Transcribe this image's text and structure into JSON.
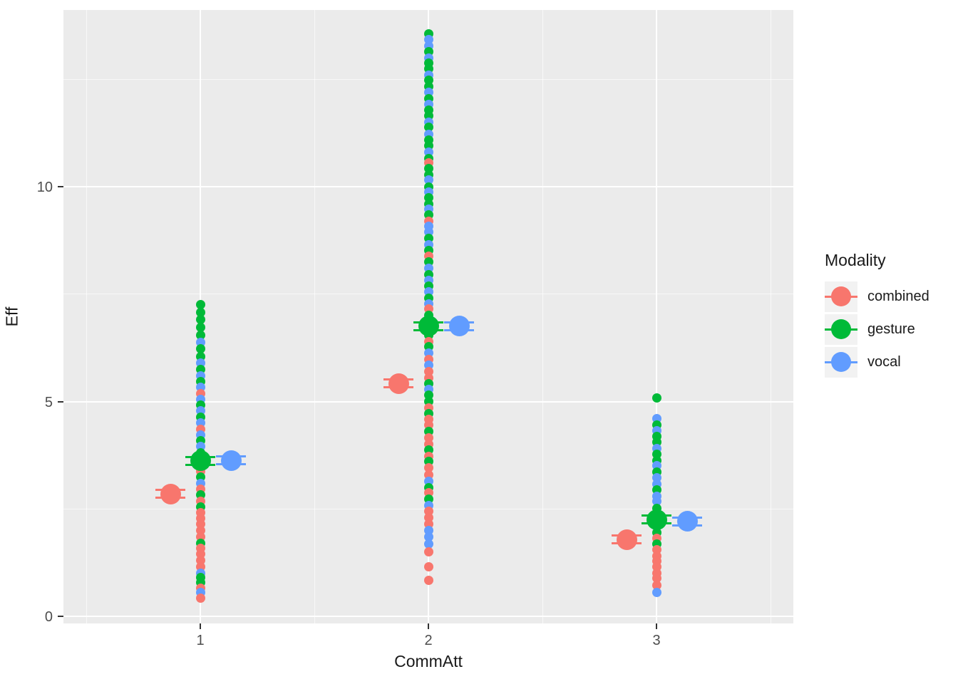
{
  "axes": {
    "x": {
      "title": "CommAtt",
      "tick_labels": [
        "1",
        "2",
        "3"
      ],
      "tick_values": [
        1,
        2,
        3
      ],
      "minor_values": [
        0.5,
        1.5,
        2.5,
        3.5
      ],
      "range": [
        0.4,
        3.6
      ]
    },
    "y": {
      "title": "Eff",
      "tick_labels": [
        "0",
        "5",
        "10"
      ],
      "tick_values": [
        0,
        5,
        10
      ],
      "minor_values": [
        2.5,
        7.5,
        12.5
      ],
      "range": [
        -0.17,
        14.12
      ]
    }
  },
  "legend": {
    "title": "Modality",
    "items": [
      {
        "label": "combined",
        "color": "#F8766D"
      },
      {
        "label": "gesture",
        "color": "#00BA38"
      },
      {
        "label": "vocal",
        "color": "#619CFF"
      }
    ],
    "key_bg": "#F2F2F2"
  },
  "panel_bg": "#EBEBEB",
  "chart_data": {
    "type": "scatter",
    "title": "",
    "xlabel": "CommAtt",
    "ylabel": "Eff",
    "x_ticks": [
      1,
      2,
      3
    ],
    "xlim": [
      0.4,
      3.6
    ],
    "ylim": [
      -0.17,
      14.12
    ],
    "grid": true,
    "legend_position": "right",
    "series_colors": {
      "combined": "#F8766D",
      "gesture": "#00BA38",
      "vocal": "#619CFF"
    },
    "modality_codes": {
      "c": "combined",
      "g": "gesture",
      "v": "vocal"
    },
    "point_format": [
      "CommAtt",
      "Eff",
      "modality_code"
    ],
    "raw_points": [
      [
        1,
        7.25,
        "g"
      ],
      [
        1,
        7.08,
        "g"
      ],
      [
        1,
        6.9,
        "g"
      ],
      [
        1,
        6.73,
        "g"
      ],
      [
        1,
        6.55,
        "g"
      ],
      [
        1,
        6.38,
        "v"
      ],
      [
        1,
        6.22,
        "g"
      ],
      [
        1,
        6.05,
        "g"
      ],
      [
        1,
        5.9,
        "v"
      ],
      [
        1,
        5.75,
        "g"
      ],
      [
        1,
        5.6,
        "v"
      ],
      [
        1,
        5.47,
        "g"
      ],
      [
        1,
        5.33,
        "v"
      ],
      [
        1,
        5.18,
        "c"
      ],
      [
        1,
        5.05,
        "v"
      ],
      [
        1,
        4.92,
        "g"
      ],
      [
        1,
        4.78,
        "v"
      ],
      [
        1,
        4.63,
        "g"
      ],
      [
        1,
        4.5,
        "v"
      ],
      [
        1,
        4.35,
        "c"
      ],
      [
        1,
        4.22,
        "v"
      ],
      [
        1,
        4.08,
        "g"
      ],
      [
        1,
        3.95,
        "v"
      ],
      [
        1,
        3.8,
        "g"
      ],
      [
        1,
        3.66,
        "v"
      ],
      [
        1,
        3.52,
        "v"
      ],
      [
        1,
        3.38,
        "c"
      ],
      [
        1,
        3.25,
        "g"
      ],
      [
        1,
        3.1,
        "v"
      ],
      [
        1,
        2.96,
        "c"
      ],
      [
        1,
        2.82,
        "g"
      ],
      [
        1,
        2.68,
        "c"
      ],
      [
        1,
        2.55,
        "g"
      ],
      [
        1,
        2.42,
        "c"
      ],
      [
        1,
        2.28,
        "c"
      ],
      [
        1,
        2.15,
        "c"
      ],
      [
        1,
        2.0,
        "c"
      ],
      [
        1,
        1.85,
        "c"
      ],
      [
        1,
        1.7,
        "g"
      ],
      [
        1,
        1.58,
        "c"
      ],
      [
        1,
        1.45,
        "c"
      ],
      [
        1,
        1.3,
        "c"
      ],
      [
        1,
        1.15,
        "c"
      ],
      [
        1,
        1.0,
        "v"
      ],
      [
        1,
        0.9,
        "g"
      ],
      [
        1,
        0.78,
        "g"
      ],
      [
        1,
        0.65,
        "c"
      ],
      [
        1,
        0.55,
        "v"
      ],
      [
        1,
        0.42,
        "c"
      ],
      [
        2,
        13.55,
        "g"
      ],
      [
        2,
        13.42,
        "v"
      ],
      [
        2,
        13.28,
        "v"
      ],
      [
        2,
        13.15,
        "g"
      ],
      [
        2,
        13.0,
        "v"
      ],
      [
        2,
        12.88,
        "g"
      ],
      [
        2,
        12.75,
        "g"
      ],
      [
        2,
        12.6,
        "v"
      ],
      [
        2,
        12.48,
        "g"
      ],
      [
        2,
        12.33,
        "g"
      ],
      [
        2,
        12.2,
        "v"
      ],
      [
        2,
        12.05,
        "g"
      ],
      [
        2,
        11.92,
        "v"
      ],
      [
        2,
        11.78,
        "g"
      ],
      [
        2,
        11.65,
        "g"
      ],
      [
        2,
        11.5,
        "v"
      ],
      [
        2,
        11.38,
        "g"
      ],
      [
        2,
        11.22,
        "v"
      ],
      [
        2,
        11.08,
        "g"
      ],
      [
        2,
        10.95,
        "g"
      ],
      [
        2,
        10.8,
        "v"
      ],
      [
        2,
        10.65,
        "g"
      ],
      [
        2,
        10.55,
        "c"
      ],
      [
        2,
        10.42,
        "g"
      ],
      [
        2,
        10.28,
        "g"
      ],
      [
        2,
        10.15,
        "v"
      ],
      [
        2,
        10.0,
        "g"
      ],
      [
        2,
        9.88,
        "v"
      ],
      [
        2,
        9.75,
        "g"
      ],
      [
        2,
        9.6,
        "g"
      ],
      [
        2,
        9.48,
        "v"
      ],
      [
        2,
        9.35,
        "g"
      ],
      [
        2,
        9.2,
        "c"
      ],
      [
        2,
        9.08,
        "v"
      ],
      [
        2,
        8.95,
        "v"
      ],
      [
        2,
        8.8,
        "g"
      ],
      [
        2,
        8.65,
        "v"
      ],
      [
        2,
        8.52,
        "g"
      ],
      [
        2,
        8.38,
        "c"
      ],
      [
        2,
        8.25,
        "g"
      ],
      [
        2,
        8.1,
        "v"
      ],
      [
        2,
        7.95,
        "g"
      ],
      [
        2,
        7.82,
        "v"
      ],
      [
        2,
        7.68,
        "g"
      ],
      [
        2,
        7.55,
        "v"
      ],
      [
        2,
        7.4,
        "g"
      ],
      [
        2,
        7.28,
        "v"
      ],
      [
        2,
        7.15,
        "c"
      ],
      [
        2,
        7.0,
        "g"
      ],
      [
        2,
        6.85,
        "g"
      ],
      [
        2,
        6.7,
        "v"
      ],
      [
        2,
        6.55,
        "g"
      ],
      [
        2,
        6.4,
        "c"
      ],
      [
        2,
        6.28,
        "g"
      ],
      [
        2,
        6.12,
        "v"
      ],
      [
        2,
        5.98,
        "c"
      ],
      [
        2,
        5.85,
        "v"
      ],
      [
        2,
        5.7,
        "c"
      ],
      [
        2,
        5.55,
        "c"
      ],
      [
        2,
        5.42,
        "g"
      ],
      [
        2,
        5.28,
        "v"
      ],
      [
        2,
        5.15,
        "g"
      ],
      [
        2,
        5.0,
        "g"
      ],
      [
        2,
        4.85,
        "c"
      ],
      [
        2,
        4.72,
        "g"
      ],
      [
        2,
        4.58,
        "c"
      ],
      [
        2,
        4.45,
        "c"
      ],
      [
        2,
        4.3,
        "g"
      ],
      [
        2,
        4.15,
        "c"
      ],
      [
        2,
        4.0,
        "c"
      ],
      [
        2,
        3.88,
        "g"
      ],
      [
        2,
        3.72,
        "c"
      ],
      [
        2,
        3.6,
        "g"
      ],
      [
        2,
        3.45,
        "c"
      ],
      [
        2,
        3.3,
        "c"
      ],
      [
        2,
        3.15,
        "v"
      ],
      [
        2,
        3.0,
        "g"
      ],
      [
        2,
        2.88,
        "c"
      ],
      [
        2,
        2.72,
        "g"
      ],
      [
        2,
        2.58,
        "v"
      ],
      [
        2,
        2.45,
        "c"
      ],
      [
        2,
        2.3,
        "c"
      ],
      [
        2,
        2.15,
        "c"
      ],
      [
        2,
        2.0,
        "v"
      ],
      [
        2,
        1.85,
        "v"
      ],
      [
        2,
        1.68,
        "v"
      ],
      [
        2,
        1.5,
        "c"
      ],
      [
        2,
        1.16,
        "c"
      ],
      [
        2,
        0.84,
        "c"
      ],
      [
        3,
        5.08,
        "g"
      ],
      [
        3,
        4.6,
        "v"
      ],
      [
        3,
        4.45,
        "g"
      ],
      [
        3,
        4.32,
        "v"
      ],
      [
        3,
        4.18,
        "g"
      ],
      [
        3,
        4.05,
        "g"
      ],
      [
        3,
        3.9,
        "v"
      ],
      [
        3,
        3.78,
        "g"
      ],
      [
        3,
        3.62,
        "g"
      ],
      [
        3,
        3.5,
        "v"
      ],
      [
        3,
        3.35,
        "g"
      ],
      [
        3,
        3.22,
        "v"
      ],
      [
        3,
        3.08,
        "v"
      ],
      [
        3,
        2.95,
        "g"
      ],
      [
        3,
        2.8,
        "v"
      ],
      [
        3,
        2.68,
        "v"
      ],
      [
        3,
        2.52,
        "g"
      ],
      [
        3,
        2.4,
        "g"
      ],
      [
        3,
        2.25,
        "g"
      ],
      [
        3,
        2.1,
        "g"
      ],
      [
        3,
        1.95,
        "g"
      ],
      [
        3,
        1.82,
        "c"
      ],
      [
        3,
        1.68,
        "g"
      ],
      [
        3,
        1.55,
        "c"
      ],
      [
        3,
        1.4,
        "c"
      ],
      [
        3,
        1.28,
        "c"
      ],
      [
        3,
        1.15,
        "c"
      ],
      [
        3,
        1.0,
        "c"
      ],
      [
        3,
        0.88,
        "c"
      ],
      [
        3,
        0.72,
        "c"
      ],
      [
        3,
        0.55,
        "v"
      ]
    ],
    "means": [
      {
        "x": 1,
        "modality": "combined",
        "x_offset": -0.13,
        "eff": 2.85,
        "se": 0.08
      },
      {
        "x": 1,
        "modality": "gesture",
        "x_offset": 0.0,
        "eff": 3.62,
        "se": 0.08
      },
      {
        "x": 1,
        "modality": "vocal",
        "x_offset": 0.135,
        "eff": 3.63,
        "se": 0.08
      },
      {
        "x": 2,
        "modality": "combined",
        "x_offset": -0.13,
        "eff": 5.42,
        "se": 0.08
      },
      {
        "x": 2,
        "modality": "gesture",
        "x_offset": 0.0,
        "eff": 6.75,
        "se": 0.08
      },
      {
        "x": 2,
        "modality": "vocal",
        "x_offset": 0.135,
        "eff": 6.75,
        "se": 0.08
      },
      {
        "x": 3,
        "modality": "combined",
        "x_offset": -0.13,
        "eff": 1.79,
        "se": 0.08
      },
      {
        "x": 3,
        "modality": "gesture",
        "x_offset": 0.0,
        "eff": 2.25,
        "se": 0.08
      },
      {
        "x": 3,
        "modality": "vocal",
        "x_offset": 0.135,
        "eff": 2.21,
        "se": 0.08
      }
    ]
  }
}
